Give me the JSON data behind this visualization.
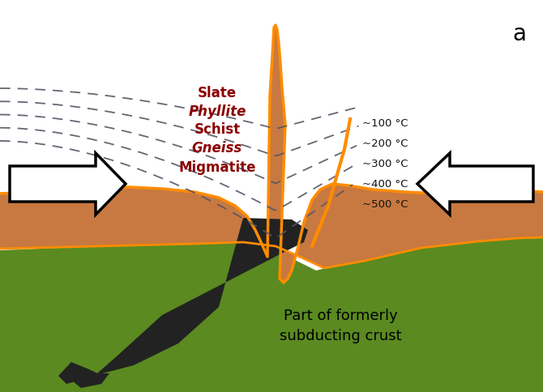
{
  "background_color": "#ffffff",
  "orange_light": "#C87941",
  "orange_border": "#FF8C00",
  "green_fill_top": "#5A8A20",
  "green_fill_bot": "#3A6010",
  "dark_subduct": "#222222",
  "label_color": "#8B0000",
  "temp_color": "#111111",
  "dashed_color": "#555566",
  "title_label": "a",
  "mineral_labels": [
    "Slate",
    "Phyllite",
    "Schist",
    "Gneiss",
    "Migmatite"
  ],
  "temp_labels": [
    "~100 °C",
    "~200 °C",
    "~300 °C",
    "~400 °C",
    "~500 °C"
  ],
  "bottom_label_line1": "Part of formerly",
  "bottom_label_line2": "subducting crust",
  "figw": 6.7,
  "figh": 4.85,
  "dpi": 100
}
